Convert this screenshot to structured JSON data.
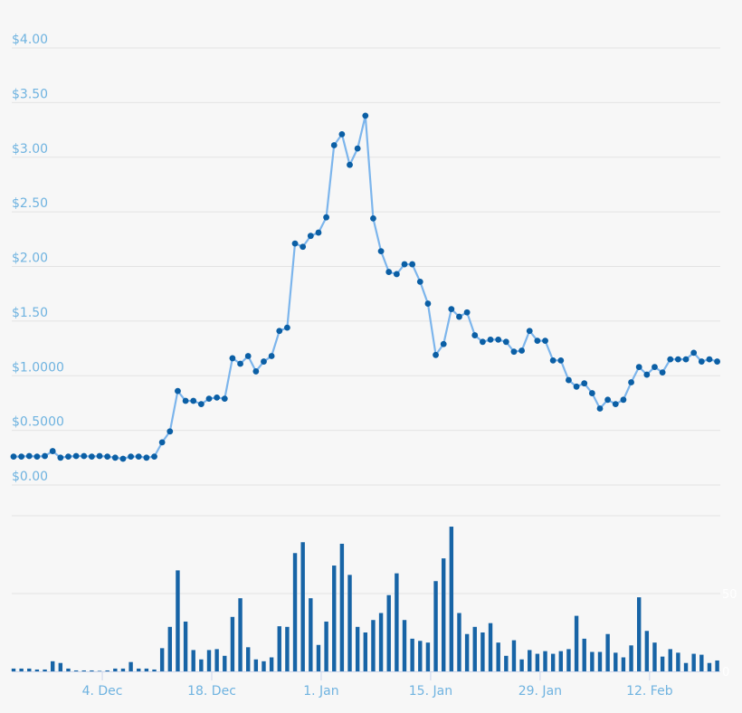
{
  "chart_data": [
    {
      "type": "line",
      "panel": "price",
      "y_ticks": [
        "$0.00",
        "$0.5000",
        "$1.0000",
        "$1.50",
        "$2.00",
        "$2.50",
        "$3.00",
        "$3.50",
        "$4.00"
      ],
      "y_tick_values": [
        0,
        0.5,
        1,
        1.5,
        2,
        2.5,
        3,
        3.5,
        4
      ],
      "ylim": [
        0,
        4
      ],
      "grid": true,
      "markers": true,
      "x": [
        "Nov 23",
        "Nov 24",
        "Nov 25",
        "Nov 26",
        "Nov 27",
        "Nov 28",
        "Nov 29",
        "Nov 30",
        "Dec 1",
        "Dec 2",
        "Dec 3",
        "Dec 4",
        "Dec 5",
        "Dec 6",
        "Dec 7",
        "Dec 8",
        "Dec 9",
        "Dec 10",
        "Dec 11",
        "Dec 12",
        "Dec 13",
        "Dec 14",
        "Dec 15",
        "Dec 16",
        "Dec 17",
        "Dec 18",
        "Dec 19",
        "Dec 20",
        "Dec 21",
        "Dec 22",
        "Dec 23",
        "Dec 24",
        "Dec 25",
        "Dec 26",
        "Dec 27",
        "Dec 28",
        "Dec 29",
        "Dec 30",
        "Dec 31",
        "Jan 1",
        "Jan 2",
        "Jan 3",
        "Jan 4",
        "Jan 5",
        "Jan 6",
        "Jan 7",
        "Jan 8",
        "Jan 9",
        "Jan 10",
        "Jan 11",
        "Jan 12",
        "Jan 13",
        "Jan 14",
        "Jan 15",
        "Jan 16",
        "Jan 17",
        "Jan 18",
        "Jan 19",
        "Jan 20",
        "Jan 21",
        "Jan 22",
        "Jan 23",
        "Jan 24",
        "Jan 25",
        "Jan 26",
        "Jan 27",
        "Jan 28",
        "Jan 29",
        "Jan 30",
        "Jan 31",
        "Feb 1",
        "Feb 2",
        "Feb 3",
        "Feb 4",
        "Feb 5",
        "Feb 6",
        "Feb 7",
        "Feb 8",
        "Feb 9",
        "Feb 10",
        "Feb 11",
        "Feb 12",
        "Feb 13",
        "Feb 14",
        "Feb 15",
        "Feb 16",
        "Feb 17",
        "Feb 18",
        "Feb 19",
        "Feb 20",
        "Feb 21"
      ],
      "values": [
        0.26,
        0.26,
        0.265,
        0.26,
        0.265,
        0.31,
        0.25,
        0.26,
        0.265,
        0.265,
        0.26,
        0.265,
        0.26,
        0.25,
        0.24,
        0.26,
        0.26,
        0.25,
        0.26,
        0.39,
        0.49,
        0.86,
        0.77,
        0.77,
        0.74,
        0.79,
        0.8,
        0.79,
        1.16,
        1.11,
        1.18,
        1.04,
        1.13,
        1.18,
        1.41,
        1.44,
        2.21,
        2.18,
        2.28,
        2.31,
        2.45,
        3.11,
        3.21,
        2.93,
        3.08,
        3.38,
        2.44,
        2.14,
        1.95,
        1.93,
        2.02,
        2.02,
        1.86,
        1.66,
        1.19,
        1.29,
        1.61,
        1.54,
        1.58,
        1.37,
        1.31,
        1.33,
        1.33,
        1.31,
        1.22,
        1.23,
        1.41,
        1.32,
        1.32,
        1.14,
        1.14,
        0.96,
        0.9,
        0.93,
        0.84,
        0.7,
        0.78,
        0.74,
        0.78,
        0.94,
        1.08,
        1.01,
        1.08,
        1.03,
        1.15,
        1.15,
        1.15,
        1.21,
        1.13,
        1.15,
        1.13
      ]
    },
    {
      "type": "bar",
      "panel": "volume",
      "y_ticks": [
        "0",
        "50"
      ],
      "y_tick_values": [
        0,
        50
      ],
      "ylim": [
        0,
        100
      ],
      "x_ticks": [
        "4. Dec",
        "18. Dec",
        "1. Jan",
        "15. Jan",
        "29. Jan",
        "12. Feb"
      ],
      "x_tick_dates": [
        "Dec 4",
        "Dec 18",
        "Jan 1",
        "Jan 15",
        "Jan 29",
        "Feb 12"
      ],
      "values": [
        1.8,
        1.8,
        1.8,
        1.2,
        1.2,
        6.5,
        5.4,
        1.8,
        0.6,
        0.6,
        0.6,
        0.3,
        0.6,
        1.8,
        1.8,
        6,
        1.8,
        1.8,
        1.2,
        14.9,
        28.6,
        64.9,
        32,
        13.7,
        7.7,
        13.7,
        14.3,
        10,
        35,
        47,
        15.5,
        7.7,
        6.5,
        9,
        29,
        28.6,
        76,
        83,
        47,
        17,
        32,
        68,
        82,
        62,
        28.6,
        25,
        33,
        37.5,
        49,
        63,
        33,
        21,
        19.6,
        18.5,
        58,
        72.6,
        93,
        37.5,
        24,
        28.6,
        25,
        31,
        18.5,
        10,
        20,
        7.7,
        13.7,
        11.3,
        13,
        11.3,
        13,
        14.3,
        35.7,
        21,
        12.5,
        12.5,
        24,
        12,
        9,
        16.7,
        47.6,
        26,
        18.5,
        9.5,
        14.3,
        12,
        5.4,
        11.3,
        10.7,
        5.4,
        7
      ]
    }
  ],
  "colors": {
    "background": "#f7f7f7",
    "line": "#7cb5ec",
    "marker": "#0b5fa5",
    "bar": "#1764a6",
    "axis_label": "#6fb3e0",
    "grid": "#e3e3e3"
  }
}
